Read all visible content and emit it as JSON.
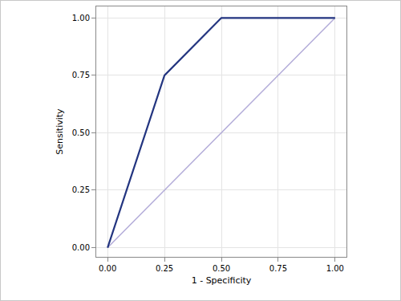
{
  "chart_data": {
    "type": "line",
    "x_label": "1 - Specificity",
    "y_label": "Sensitivity",
    "xlim": [
      -0.05,
      1.05
    ],
    "ylim": [
      -0.04,
      1.05
    ],
    "xticks": [
      {
        "value": 0,
        "label": "0.00"
      },
      {
        "value": 0.25,
        "label": "0.25"
      },
      {
        "value": 0.5,
        "label": "0.50"
      },
      {
        "value": 0.75,
        "label": "0.75"
      },
      {
        "value": 1,
        "label": "1.00"
      }
    ],
    "yticks": [
      {
        "value": 0,
        "label": "0.00"
      },
      {
        "value": 0.25,
        "label": "0.25"
      },
      {
        "value": 0.5,
        "label": "0.50"
      },
      {
        "value": 0.75,
        "label": "0.75"
      },
      {
        "value": 1,
        "label": "1.00"
      }
    ],
    "grid": true,
    "series": [
      {
        "color": "#233580",
        "x": [
          0,
          0.25,
          0.5,
          1
        ],
        "values": [
          0,
          0.75,
          1,
          1
        ]
      },
      {
        "color": "#b3acd9",
        "x": [
          0,
          1
        ],
        "values": [
          0,
          1
        ]
      }
    ]
  }
}
